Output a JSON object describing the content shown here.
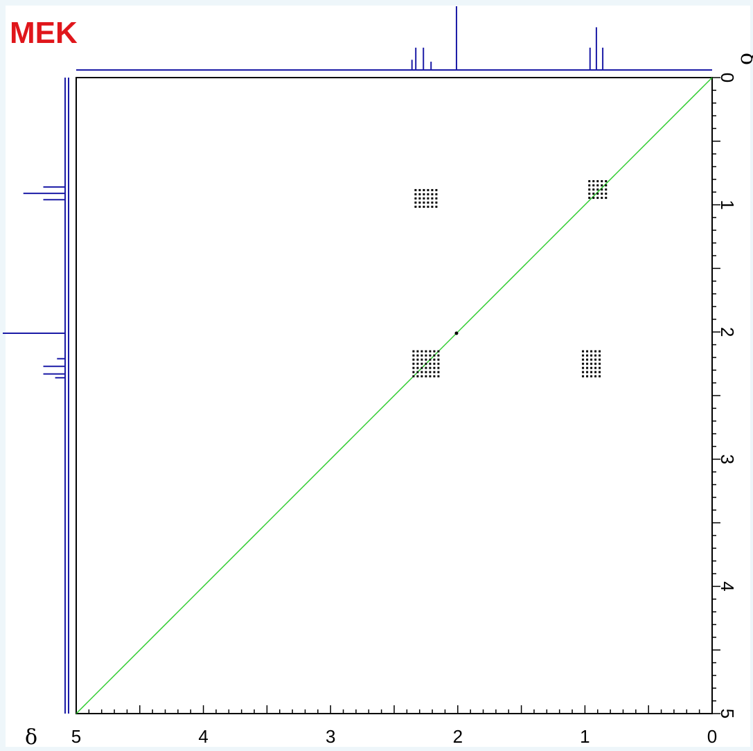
{
  "title": "MEK",
  "chart_data": {
    "type": "scatter",
    "subtype": "2D COSY NMR spectrum",
    "title": "MEK",
    "xlabel": "δ",
    "ylabel": "δ",
    "xlim": [
      5,
      0
    ],
    "ylim": [
      0,
      5
    ],
    "x_ticks": [
      "5",
      "4",
      "3",
      "2",
      "1",
      "0"
    ],
    "y_ticks": [
      "0",
      "1",
      "2",
      "3",
      "4",
      "5"
    ],
    "diagonal": {
      "from": [
        5,
        5
      ],
      "to": [
        0,
        0
      ],
      "color": "#2ecc2e"
    },
    "cross_peaks": [
      {
        "x": 2.25,
        "y": 0.95,
        "type": "off-diagonal"
      },
      {
        "x": 0.9,
        "y": 0.88,
        "type": "diagonal"
      },
      {
        "x": 2.25,
        "y": 2.25,
        "type": "diagonal"
      },
      {
        "x": 0.95,
        "y": 2.25,
        "type": "off-diagonal"
      },
      {
        "x": 2.01,
        "y": 2.01,
        "type": "singlet-diagonal"
      }
    ],
    "projection_1d": [
      {
        "shift": 2.36,
        "intensity": 0.16
      },
      {
        "shift": 2.33,
        "intensity": 0.35
      },
      {
        "shift": 2.27,
        "intensity": 0.35
      },
      {
        "shift": 2.21,
        "intensity": 0.13
      },
      {
        "shift": 2.01,
        "intensity": 1.0
      },
      {
        "shift": 0.96,
        "intensity": 0.35
      },
      {
        "shift": 0.91,
        "intensity": 0.67
      },
      {
        "shift": 0.86,
        "intensity": 0.35
      }
    ],
    "colors": {
      "projection": "#1a1aa6",
      "diagonal": "#2ecc2e",
      "peaks": "#000000",
      "title": "#e0161b"
    },
    "grid": false
  }
}
